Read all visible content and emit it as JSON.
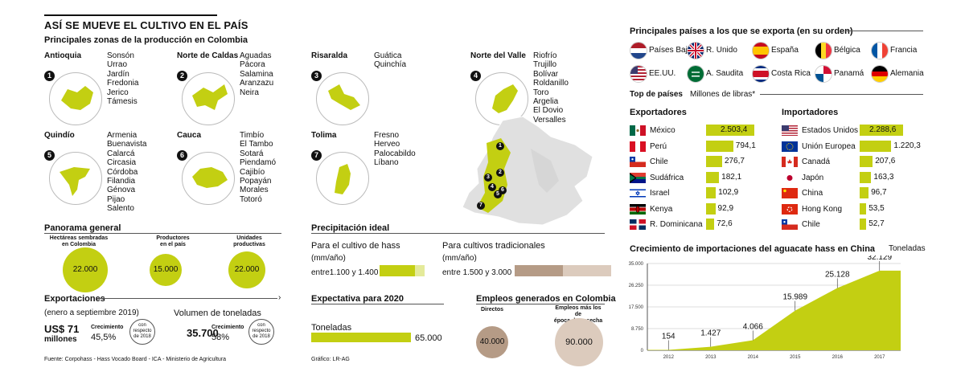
{
  "header": {
    "title": "ASÍ SE MUEVE EL CULTIVO EN EL PAÍS",
    "subtitle": "Principales zonas de la producción en Colombia"
  },
  "zones": [
    {
      "num": "1",
      "name": "Antioquia",
      "towns": "Sonsón\nUrrao\nJardín\nFredonia\nJerico\nTámesis"
    },
    {
      "num": "2",
      "name": "Norte de Caldas",
      "towns": "Aguadas\nPácora\nSalamina\nAranzazu\nNeira"
    },
    {
      "num": "3",
      "name": "Risaralda",
      "towns": "Guática\nQuinchía"
    },
    {
      "num": "4",
      "name": "Norte del Valle",
      "towns": "Riofrío\nTrujillo\nBolívar\nRoldanillo\nToro\nArgelia\nEl Dovio\nVersalles"
    },
    {
      "num": "5",
      "name": "Quindío",
      "towns": "Armenia\nBuenavista\nCalarcá\nCircasia\nCórdoba\nFilandia\nGénova\nPijao\nSalento"
    },
    {
      "num": "6",
      "name": "Cauca",
      "towns": "Timbío\nEl Tambo\nSotará\nPiendamó\nCajibío\nPopayán\nMorales\nTotoró"
    },
    {
      "num": "7",
      "name": "Tolima",
      "towns": "Fresno\nHerveo\nPalocabildo\nLíbano"
    }
  ],
  "panorama": {
    "title": "Panorama general",
    "items": [
      {
        "label": "Hectáreas sembradas\nen Colombia",
        "value": "22.000"
      },
      {
        "label": "Productores\nen el país",
        "value": "15.000"
      },
      {
        "label": "Unidades\nproductivas",
        "value": "22.000"
      }
    ]
  },
  "exports": {
    "title": "Exportaciones",
    "period": "(enero a septiembre 2019)",
    "usd": "US$ 71",
    "usd_unit": "millones",
    "growth_label": "Crecimiento",
    "growth_usd": "45,5%",
    "compare": "con\nrespecto\nde 2018",
    "volume_title": "Volumen de toneladas",
    "tons": "35.700",
    "growth_tons": "58%"
  },
  "precip": {
    "title": "Precipitación ideal",
    "hass_label": "Para el cultivo de hass",
    "unit": "(mm/año)",
    "hass_range": "entre1.100 y 1.400",
    "trad_label": "Para cultivos tradicionales",
    "trad_range": "entre 1.500 y 3.000"
  },
  "expect": {
    "title": "Expectativa para 2020",
    "label": "Toneladas",
    "value": "65.000"
  },
  "jobs": {
    "title": "Empleos generados en Colombia",
    "direct_label": "Directos",
    "direct": "40.000",
    "harvest_label": "Empleos más los de\népoca de cosecha",
    "harvest": "90.000"
  },
  "footer": {
    "source": "Fuente: Corpohass - Hass Vocado Board - ICA - Ministerio de Agricultura",
    "credit": "Gráfico: LR-AG"
  },
  "countries": {
    "title": "Principales países a los que se exporta (en su orden)",
    "list": [
      "Países Bajos",
      "R. Unido",
      "España",
      "Bélgica",
      "Francia",
      "EE.UU.",
      "A. Saudita",
      "Costa Rica",
      "Panamá",
      "Alemania"
    ]
  },
  "top": {
    "title": "Top de países",
    "unit": "Millones de libras*",
    "exp_title": "Exportadores",
    "imp_title": "Importadores",
    "exporters": [
      {
        "name": "México",
        "value": 2503.4,
        "label": "2.503,4"
      },
      {
        "name": "Perú",
        "value": 794.1,
        "label": "794,1"
      },
      {
        "name": "Chile",
        "value": 276.7,
        "label": "276,7"
      },
      {
        "name": "Sudáfrica",
        "value": 182.1,
        "label": "182,1"
      },
      {
        "name": "Israel",
        "value": 102.9,
        "label": "102,9"
      },
      {
        "name": "Kenya",
        "value": 92.9,
        "label": "92,9"
      },
      {
        "name": "R. Dominicana",
        "value": 72.6,
        "label": "72,6"
      }
    ],
    "importers": [
      {
        "name": "Estados Unidos",
        "value": 2288.6,
        "label": "2.288,6"
      },
      {
        "name": "Unión Europea",
        "value": 1220.3,
        "label": "1.220,3"
      },
      {
        "name": "Canadá",
        "value": 207.6,
        "label": "207,6"
      },
      {
        "name": "Japón",
        "value": 163.3,
        "label": "163,3"
      },
      {
        "name": "China",
        "value": 96.7,
        "label": "96,7"
      },
      {
        "name": "Hong Kong",
        "value": 53.5,
        "label": "53,5"
      },
      {
        "name": "Chile",
        "value": 52.7,
        "label": "52,7"
      }
    ]
  },
  "chart_data": {
    "type": "area",
    "title": "Crecimiento de importaciones del aguacate hass en China",
    "ylabel": "Toneladas",
    "x": [
      "2012",
      "2013",
      "2014",
      "2015",
      "2016",
      "2017"
    ],
    "values": [
      154,
      1427,
      4066,
      15989,
      25128,
      32129
    ],
    "value_labels": [
      "154",
      "1.427",
      "4.066",
      "15.989",
      "25.128",
      "32.129"
    ],
    "yticks": [
      0,
      8750,
      17500,
      26250,
      35000
    ],
    "ytick_labels": [
      "0",
      "8.750",
      "17.500",
      "26.250",
      "35.000"
    ],
    "ylim": [
      0,
      35000
    ],
    "color": "#c3cf12"
  }
}
